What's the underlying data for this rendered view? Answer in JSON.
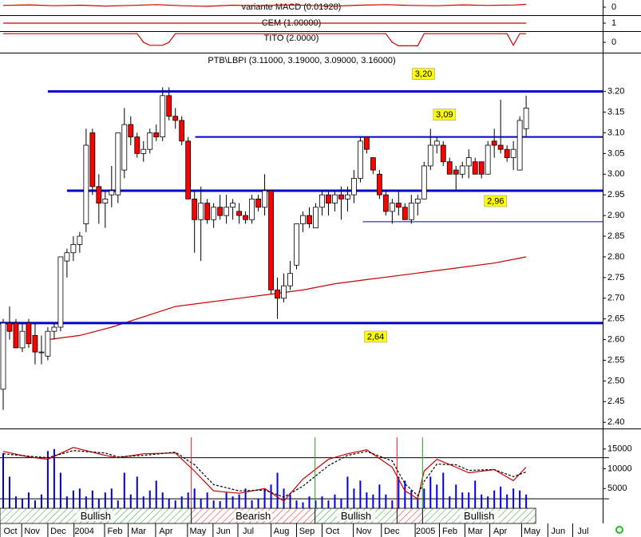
{
  "chart_data": [
    {
      "type": "line",
      "title": "variante MACD (0.01928)",
      "color": "#cc0000",
      "x": [
        0,
        4,
        8,
        12,
        16,
        20,
        24,
        28,
        32,
        36,
        40,
        44,
        48,
        52,
        56,
        60,
        64,
        68,
        72,
        76,
        80,
        82
      ],
      "values": [
        0.012,
        0.016,
        0.01,
        0.014,
        0.008,
        0.012,
        0.018,
        0.01,
        0.006,
        0.014,
        0.01,
        0.016,
        0.012,
        0.008,
        0.014,
        0.018,
        0.012,
        0.01,
        0.016,
        0.012,
        0.015,
        0.0193
      ],
      "xlim": [
        -0.5,
        94
      ],
      "ylim": [
        -0.05,
        0.05
      ],
      "yticks": [
        0
      ]
    },
    {
      "type": "line",
      "title": "CEM (1.00000)",
      "color": "#cc0000",
      "x": [
        0,
        82
      ],
      "values": [
        1,
        1
      ],
      "xlim": [
        -0.5,
        94
      ],
      "ylim": [
        0,
        2
      ],
      "yticks": [
        1
      ]
    },
    {
      "type": "line",
      "title": "TITO (2.0000)",
      "color": "#cc0000",
      "x": [
        0,
        21,
        22,
        23,
        25,
        26,
        27,
        60,
        61,
        62,
        65,
        66,
        79,
        80,
        81,
        82
      ],
      "values": [
        2,
        2,
        0,
        -0.7,
        -0.7,
        0,
        2,
        2,
        0,
        -0.8,
        -0.8,
        2,
        2,
        -0.7,
        2,
        2
      ],
      "xlim": [
        -0.5,
        94
      ],
      "ylim": [
        -2.2,
        2.4
      ],
      "yticks": [
        0
      ]
    },
    {
      "type": "candlestick",
      "title": "PTB\\LBPI (3.11000, 3.19000, 3.09000, 3.16000)",
      "up_color": "#ffffff",
      "down_color": "#ff0000",
      "x": [
        0,
        1,
        2,
        3,
        4,
        5,
        6,
        7,
        8,
        9,
        10,
        11,
        12,
        13,
        14,
        15,
        16,
        17,
        18,
        19,
        20,
        21,
        22,
        23,
        24,
        25,
        26,
        27,
        28,
        29,
        30,
        31,
        32,
        33,
        34,
        35,
        36,
        37,
        38,
        39,
        40,
        41,
        42,
        43,
        44,
        45,
        46,
        47,
        48,
        49,
        50,
        51,
        52,
        53,
        54,
        55,
        56,
        57,
        58,
        59,
        60,
        61,
        62,
        63,
        64,
        65,
        66,
        67,
        68,
        69,
        70,
        71,
        72,
        73,
        74,
        75,
        76,
        77,
        78,
        79,
        80,
        81,
        82
      ],
      "open": [
        2.48,
        2.64,
        2.64,
        2.58,
        2.64,
        2.61,
        2.57,
        2.56,
        2.62,
        2.63,
        2.79,
        2.81,
        2.83,
        2.88,
        3.1,
        2.97,
        2.93,
        2.95,
        2.95,
        3.01,
        3.12,
        3.09,
        3.05,
        3.06,
        3.1,
        3.09,
        3.19,
        3.14,
        3.13,
        3.08,
        2.94,
        2.89,
        2.93,
        2.89,
        2.92,
        2.9,
        2.92,
        2.91,
        2.9,
        2.89,
        2.94,
        2.92,
        2.96,
        2.72,
        2.7,
        2.73,
        2.78,
        2.88,
        2.9,
        2.87,
        2.92,
        2.95,
        2.93,
        2.95,
        2.94,
        2.95,
        2.99,
        3.09,
        3.04,
        3.0,
        2.95,
        2.91,
        2.93,
        2.92,
        2.89,
        2.93,
        2.94,
        3.02,
        3.07,
        3.07,
        3.03,
        3.01,
        3.0,
        3.02,
        3.03,
        3.03,
        3.0,
        3.08,
        3.07,
        3.06,
        3.04,
        3.01,
        3.11
      ],
      "high": [
        2.65,
        2.68,
        2.65,
        2.64,
        2.65,
        2.64,
        2.61,
        2.63,
        2.64,
        2.8,
        2.82,
        2.85,
        2.86,
        3.11,
        3.11,
        3.0,
        2.96,
        3.02,
        3.1,
        3.16,
        3.14,
        3.1,
        3.08,
        3.11,
        3.12,
        3.21,
        3.21,
        3.16,
        3.14,
        3.09,
        2.96,
        2.97,
        2.94,
        2.93,
        2.95,
        2.95,
        2.94,
        2.93,
        2.91,
        2.95,
        2.95,
        3.0,
        2.96,
        2.75,
        2.76,
        2.79,
        2.88,
        2.91,
        2.92,
        2.93,
        2.96,
        2.96,
        2.96,
        2.97,
        2.97,
        3.01,
        3.09,
        3.09,
        3.04,
        3.01,
        2.96,
        2.94,
        2.96,
        2.93,
        2.95,
        2.95,
        3.03,
        3.11,
        3.09,
        3.08,
        3.04,
        3.02,
        3.03,
        3.06,
        3.04,
        3.03,
        3.08,
        3.11,
        3.18,
        3.07,
        3.08,
        3.14,
        3.19
      ],
      "low": [
        2.43,
        2.6,
        2.58,
        2.57,
        2.58,
        2.54,
        2.54,
        2.55,
        2.6,
        2.62,
        2.75,
        2.79,
        2.81,
        2.86,
        2.95,
        2.88,
        2.87,
        2.92,
        2.93,
        2.99,
        3.07,
        3.04,
        3.03,
        3.05,
        3.08,
        3.08,
        3.13,
        3.11,
        3.07,
        2.94,
        2.81,
        2.79,
        2.88,
        2.87,
        2.89,
        2.88,
        2.89,
        2.88,
        2.88,
        2.88,
        2.91,
        2.9,
        2.71,
        2.65,
        2.69,
        2.72,
        2.77,
        2.86,
        2.87,
        2.87,
        2.9,
        2.9,
        2.91,
        2.89,
        2.91,
        2.93,
        2.98,
        3.05,
        3.0,
        2.94,
        2.9,
        2.88,
        2.9,
        2.89,
        2.88,
        2.9,
        2.94,
        3.01,
        3.05,
        3.02,
        3.0,
        2.96,
        2.99,
        2.99,
        3.0,
        2.99,
        3.0,
        3.04,
        3.05,
        3.03,
        3.01,
        3.01,
        3.09
      ],
      "close": [
        2.64,
        2.62,
        2.58,
        2.62,
        2.59,
        2.57,
        2.57,
        2.62,
        2.63,
        2.8,
        2.81,
        2.83,
        2.85,
        3.07,
        2.97,
        2.93,
        2.94,
        2.96,
        3.1,
        3.12,
        3.09,
        3.05,
        3.06,
        3.1,
        3.09,
        3.19,
        3.14,
        3.13,
        3.08,
        2.94,
        2.89,
        2.93,
        2.89,
        2.92,
        2.9,
        2.92,
        2.93,
        2.9,
        2.89,
        2.94,
        2.92,
        2.96,
        2.72,
        2.7,
        2.73,
        2.76,
        2.88,
        2.9,
        2.88,
        2.92,
        2.95,
        2.93,
        2.95,
        2.94,
        2.95,
        2.99,
        3.08,
        3.06,
        3.01,
        2.95,
        2.91,
        2.93,
        2.92,
        2.89,
        2.93,
        2.94,
        3.02,
        3.07,
        3.08,
        3.03,
        3.0,
        3.0,
        3.02,
        3.04,
        3.0,
        3.0,
        3.07,
        3.07,
        3.06,
        3.04,
        3.06,
        3.13,
        3.16
      ],
      "overlay": {
        "color": "#cc0000",
        "x": [
          7,
          12,
          17,
          22,
          27,
          32,
          37,
          42,
          47,
          52,
          57,
          62,
          67,
          72,
          77,
          82
        ],
        "values": [
          2.6,
          2.61,
          2.63,
          2.655,
          2.68,
          2.69,
          2.7,
          2.71,
          2.72,
          2.735,
          2.745,
          2.755,
          2.765,
          2.775,
          2.785,
          2.8
        ]
      },
      "levels": [
        {
          "value": 3.2,
          "from": 7,
          "linewidth": 3,
          "color": "#0000cc",
          "label": "3,20",
          "label_x": 65.9,
          "label_y": 3.2425
        },
        {
          "value": 3.09,
          "from": 30.1,
          "linewidth": 2,
          "color": "#0000cc",
          "label": "3,09",
          "label_x": 69.2,
          "label_y": 3.144
        },
        {
          "value": 2.96,
          "from": 10,
          "linewidth": 3,
          "color": "#0000cc",
          "label": "2,96",
          "label_x": 77.2,
          "label_y": 2.935
        },
        {
          "value": 2.885,
          "from": 56.4,
          "linewidth": 1,
          "color": "#0000cc"
        },
        {
          "value": 2.64,
          "from": -0.5,
          "linewidth": 3,
          "color": "#0000cc",
          "label": "2,64",
          "label_x": 58.4,
          "label_y": 2.607
        }
      ],
      "label_color": "#ffff00",
      "xlim": [
        -0.5,
        94
      ],
      "ylim": [
        2.385,
        3.29
      ],
      "yticks": [
        {
          "value": 3.2,
          "label": "3.20"
        },
        3.15,
        {
          "value": 3.1,
          "label": "3.10"
        },
        3.05,
        {
          "value": 3.0,
          "label": "3.00"
        },
        2.95,
        {
          "value": 2.9,
          "label": "2.90"
        },
        2.85,
        {
          "value": 2.8,
          "label": "2.80"
        },
        2.75,
        {
          "value": 2.7,
          "label": "2.70"
        },
        2.65,
        {
          "value": 2.6,
          "label": "2.60"
        },
        2.55,
        {
          "value": 2.5,
          "label": "2.50"
        },
        2.45,
        {
          "value": 2.4,
          "label": "2.40"
        }
      ]
    },
    {
      "type": "bar",
      "color": "#0000dd",
      "x": [
        0,
        1,
        2,
        3,
        4,
        5,
        6,
        7,
        8,
        9,
        10,
        11,
        12,
        13,
        14,
        15,
        16,
        17,
        18,
        19,
        20,
        21,
        22,
        23,
        24,
        25,
        26,
        27,
        28,
        29,
        30,
        31,
        32,
        33,
        34,
        35,
        36,
        37,
        38,
        39,
        40,
        41,
        42,
        43,
        44,
        45,
        46,
        47,
        48,
        49,
        50,
        51,
        52,
        53,
        54,
        55,
        56,
        57,
        58,
        59,
        60,
        61,
        62,
        63,
        64,
        65,
        66,
        67,
        68,
        69,
        70,
        71,
        72,
        73,
        74,
        75,
        76,
        77,
        78,
        79,
        80,
        81,
        82
      ],
      "values": [
        14000,
        8000,
        3000,
        2500,
        4000,
        2000,
        3500,
        14500,
        15000,
        9000,
        3000,
        4500,
        5000,
        3000,
        4500,
        2500,
        4000,
        5000,
        2000,
        9000,
        3500,
        8000,
        3000,
        4500,
        7000,
        4000,
        2500,
        2000,
        3000,
        4000,
        5000,
        2500,
        4000,
        2000,
        1800,
        4000,
        3000,
        3500,
        5000,
        2000,
        2500,
        5000,
        6000,
        9000,
        5000,
        3500,
        2000,
        1500,
        3000,
        2000,
        3000,
        2000,
        3500,
        2500,
        8000,
        5000,
        7000,
        4000,
        3500,
        6000,
        3500,
        2000,
        8000,
        7000,
        4500,
        2500,
        5000,
        8000,
        6000,
        9000,
        3000,
        6000,
        4000,
        4000,
        7000,
        3500,
        3000,
        4500,
        5500,
        3500,
        5000,
        4500,
        3500
      ],
      "series": [
        {
          "color": "#cc0000",
          "x": [
            0,
            4,
            7,
            11,
            16,
            18,
            22,
            27,
            30,
            33,
            37,
            41,
            44,
            47,
            51,
            54,
            57,
            61,
            63,
            65,
            66,
            68,
            71,
            73,
            77,
            80,
            82
          ],
          "values": [
            14400,
            13000,
            12400,
            15400,
            13400,
            12800,
            13800,
            14000,
            9400,
            4400,
            3800,
            5000,
            1800,
            7400,
            12400,
            13800,
            14800,
            10400,
            4400,
            2400,
            9400,
            12400,
            10400,
            9000,
            9800,
            7000,
            10400
          ]
        },
        {
          "color": "#000000",
          "dash": true,
          "x": [
            0,
            4,
            7,
            11,
            16,
            18,
            22,
            27,
            30,
            33,
            37,
            41,
            44,
            47,
            51,
            54,
            57,
            61,
            63,
            65,
            66,
            68,
            71,
            73,
            77,
            80,
            82
          ],
          "values": [
            13800,
            13200,
            12800,
            14600,
            14000,
            13000,
            13400,
            14200,
            11000,
            6000,
            4400,
            4600,
            2800,
            5600,
            10800,
            13400,
            14400,
            12000,
            6200,
            3200,
            6800,
            11200,
            11000,
            9600,
            9800,
            8000,
            9200
          ]
        }
      ],
      "levels": [
        12800,
        2400
      ],
      "xlim": [
        -0.5,
        94
      ],
      "ylim": [
        0,
        20000
      ],
      "yticks": [
        15000,
        10000,
        5000
      ]
    },
    {
      "type": "band",
      "segments": [
        {
          "from": -0.5,
          "to": 29.5,
          "label": "Bullish",
          "color": "#2a9d2a"
        },
        {
          "from": 29.5,
          "to": 48.9,
          "label": "Bearish",
          "color": "#dd2222"
        },
        {
          "from": 48.9,
          "to": 61.75,
          "label": "Bullish",
          "color": "#2a9d2a"
        },
        {
          "from": 61.75,
          "to": 65.75,
          "label": null,
          "color": "#dd2222"
        },
        {
          "from": 65.75,
          "to": 83.5,
          "label": "Bullish",
          "color": "#2a9d2a"
        }
      ],
      "xlim": [
        -0.5,
        94
      ],
      "xticks": [
        {
          "value": -0.5,
          "label": "Oct"
        },
        {
          "value": 2.9,
          "label": "Nov"
        },
        {
          "value": 7,
          "label": "Dec"
        },
        {
          "value": 11.1,
          "label": "2004"
        },
        {
          "value": 15.9,
          "label": "Feb"
        },
        {
          "value": 19.6,
          "label": "Mar"
        },
        {
          "value": 23.9,
          "label": "Apr"
        },
        {
          "value": 28.9,
          "label": "May"
        },
        {
          "value": 32.9,
          "label": "Jun"
        },
        {
          "value": 36.8,
          "label": "Jul"
        },
        {
          "value": 42,
          "label": "Aug"
        },
        {
          "value": 46,
          "label": "Sep"
        },
        {
          "value": 50,
          "label": "Oct"
        },
        {
          "value": 54.9,
          "label": "Nov"
        },
        {
          "value": 59.3,
          "label": "Dec"
        },
        {
          "value": 64.6,
          "label": "2005"
        },
        {
          "value": 68.4,
          "label": "Feb"
        },
        {
          "value": 72.4,
          "label": "Mar"
        },
        {
          "value": 76.3,
          "label": "Apr"
        },
        {
          "value": 81.3,
          "label": "May"
        },
        {
          "value": 85.4,
          "label": "Jun"
        },
        {
          "value": 89.3,
          "label": "Jul"
        }
      ]
    }
  ]
}
